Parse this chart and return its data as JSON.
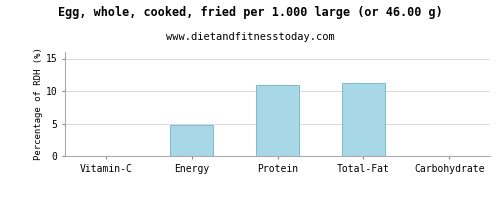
{
  "title": "Egg, whole, cooked, fried per 1.000 large (or 46.00 g)",
  "subtitle": "www.dietandfitnesstoday.com",
  "categories": [
    "Vitamin-C",
    "Energy",
    "Protein",
    "Total-Fat",
    "Carbohydrate"
  ],
  "values": [
    0,
    4.8,
    11.0,
    11.2,
    0
  ],
  "bar_color": "#a8d8e8",
  "bar_edge_color": "#7bbccc",
  "ylabel": "Percentage of RDH (%)",
  "ylim": [
    0,
    16
  ],
  "yticks": [
    0,
    5,
    10,
    15
  ],
  "background_color": "#ffffff",
  "title_fontsize": 8.5,
  "subtitle_fontsize": 7.5,
  "axis_fontsize": 7,
  "ylabel_fontsize": 6.5
}
